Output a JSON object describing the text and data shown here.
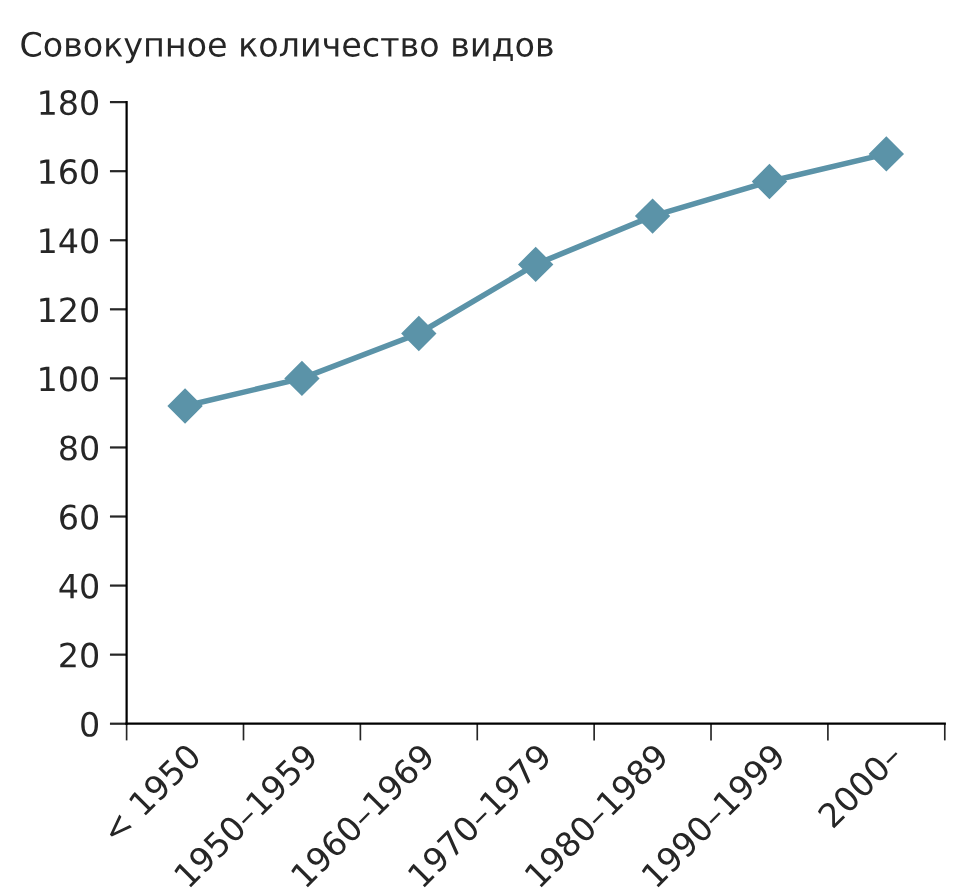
{
  "chart_data": {
    "type": "line",
    "title": "Совокупное количество видов",
    "categories": [
      "< 1950",
      "1950–1959",
      "1960–1969",
      "1970–1979",
      "1980–1989",
      "1990–1999",
      "2000–"
    ],
    "series": [
      {
        "color": "#5b93a8",
        "values": [
          92,
          100,
          113,
          133,
          147,
          157,
          165
        ]
      }
    ],
    "ylim": [
      0,
      180
    ],
    "yticks": [
      0,
      20,
      40,
      60,
      80,
      100,
      120,
      140,
      160,
      180
    ],
    "marker": "diamond",
    "line_style": "solid",
    "grid": false,
    "legend": false
  }
}
